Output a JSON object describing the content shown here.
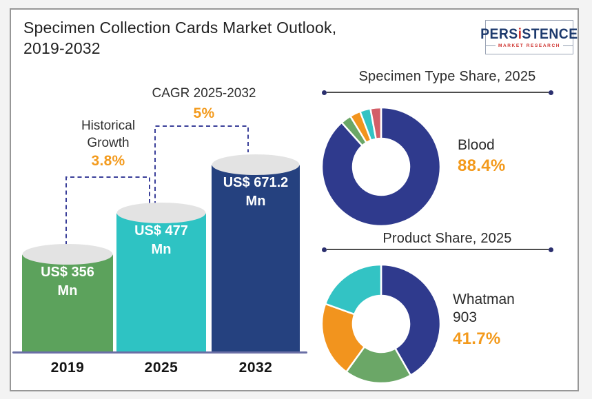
{
  "header": {
    "title_line1": "Specimen Collection Cards Market Outlook,",
    "title_line2": "2019-2032"
  },
  "logo": {
    "brand_pre": "PERS",
    "brand_i": "i",
    "brand_post": "STENCE",
    "tagline": "MARKET RESEARCH",
    "brand_color": "#1d3a6d",
    "accent_color": "#cf3430"
  },
  "palette": {
    "bar_green": "#5ca25c",
    "bar_teal": "#2ec3c3",
    "bar_navy": "#25417f",
    "donut_navy": "#2f3a8d",
    "donut_green": "#6ba767",
    "donut_orange": "#f2941e",
    "donut_teal": "#33c3c4",
    "donut_red": "#d35f68",
    "value_orange": "#f39a1c",
    "dashed_navy": "#3a3f99",
    "cylinder_top_gray": "#e3e3e3"
  },
  "chart_data": [
    {
      "type": "bar",
      "title": "Specimen Collection Cards Market Outlook, 2019-2032",
      "categories": [
        "2019",
        "2025",
        "2032"
      ],
      "values": [
        356,
        477,
        671.2
      ],
      "unit": "US$ Mn",
      "value_labels": [
        "US$ 356 Mn",
        "US$ 477 Mn",
        "US$ 671.2 Mn"
      ],
      "colors": [
        "#5ca25c",
        "#2ec3c3",
        "#25417f"
      ],
      "annotations": {
        "historical_growth_label": "Historical Growth",
        "historical_growth_value": "3.8%",
        "cagr_label": "CAGR 2025-2032",
        "cagr_value": "5%"
      }
    },
    {
      "type": "pie",
      "donut": true,
      "title": "Specimen Type Share, 2025",
      "callout": {
        "label": "Blood",
        "value": "88.4%"
      },
      "segments": [
        {
          "label": "Blood",
          "value": 88.4,
          "color": "#2f3a8d"
        },
        {
          "label": "",
          "value": 2.9,
          "color": "#6ba767"
        },
        {
          "label": "",
          "value": 2.9,
          "color": "#f2941e"
        },
        {
          "label": "",
          "value": 2.9,
          "color": "#33c3c4"
        },
        {
          "label": "",
          "value": 2.9,
          "color": "#d35f68"
        }
      ]
    },
    {
      "type": "pie",
      "donut": true,
      "title": "Product Share, 2025",
      "callout": {
        "label": "Whatman 903",
        "value": "41.7%"
      },
      "segments": [
        {
          "label": "Whatman 903",
          "value": 41.7,
          "color": "#2f3a8d"
        },
        {
          "label": "",
          "value": 18.3,
          "color": "#6ba767"
        },
        {
          "label": "",
          "value": 20.5,
          "color": "#f2941e"
        },
        {
          "label": "",
          "value": 19.5,
          "color": "#33c3c4"
        }
      ]
    }
  ]
}
